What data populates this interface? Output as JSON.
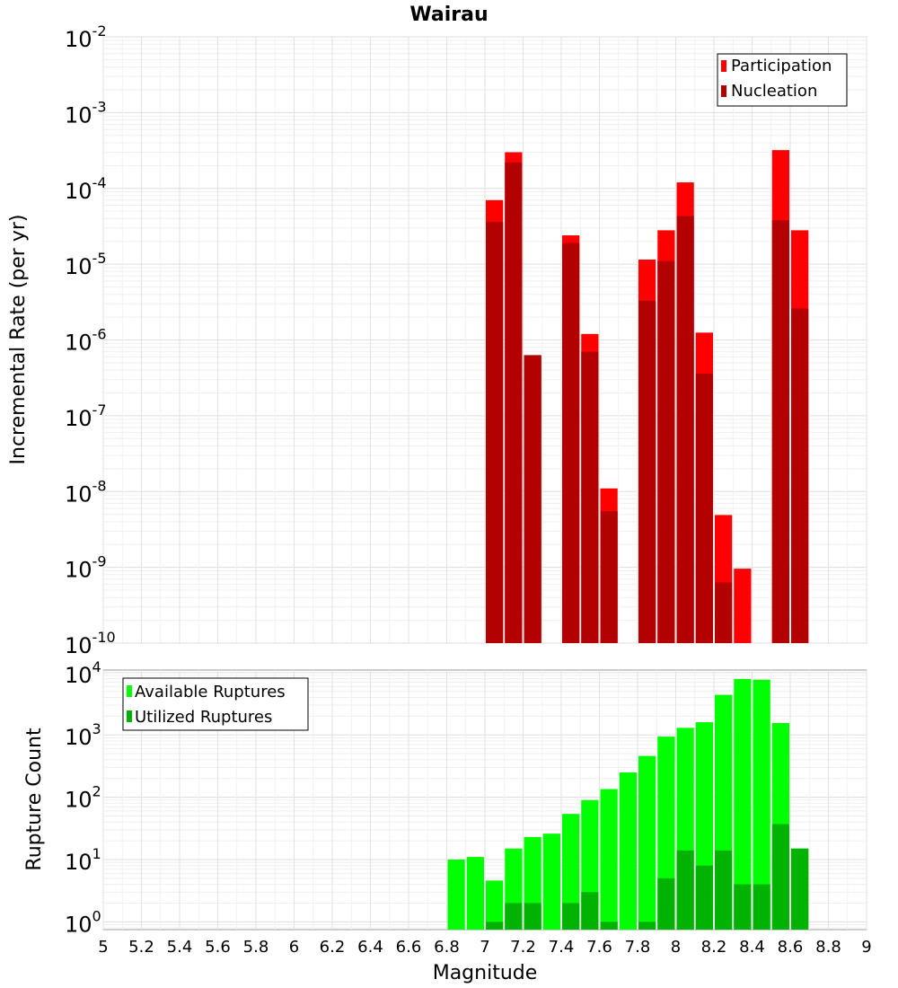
{
  "title": "Wairau",
  "chart_data": [
    {
      "type": "bar",
      "ylabel": "Incremental Rate (per yr)",
      "xlabel": "",
      "yscale": "log",
      "ylim": [
        1e-10,
        0.01
      ],
      "xlim": [
        5,
        9
      ],
      "grid": true,
      "legend_position": "top-right",
      "y_ticks": [
        {
          "base": "10",
          "exp": "-2",
          "value": 0.01
        },
        {
          "base": "10",
          "exp": "-3",
          "value": 0.001
        },
        {
          "base": "10",
          "exp": "-4",
          "value": 0.0001
        },
        {
          "base": "10",
          "exp": "-5",
          "value": 1e-05
        },
        {
          "base": "10",
          "exp": "-6",
          "value": 1e-06
        },
        {
          "base": "10",
          "exp": "-7",
          "value": 1e-07
        },
        {
          "base": "10",
          "exp": "-8",
          "value": 1e-08
        },
        {
          "base": "10",
          "exp": "-9",
          "value": 1e-09
        },
        {
          "base": "10",
          "exp": "-10",
          "value": 1e-10
        }
      ],
      "x": [
        7.05,
        7.15,
        7.25,
        7.45,
        7.55,
        7.65,
        7.85,
        7.95,
        8.05,
        8.15,
        8.25,
        8.35,
        8.55,
        8.65
      ],
      "series": [
        {
          "name": "Participation",
          "color": "#ff0000",
          "values": [
            7e-05,
            0.0003,
            6.3e-07,
            2.4e-05,
            1.2e-06,
            1.1e-08,
            1.15e-05,
            2.8e-05,
            0.00012,
            1.25e-06,
            4.9e-09,
            9.6e-10,
            0.00032,
            2.8e-05
          ]
        },
        {
          "name": "Nucleation",
          "color": "#b30000",
          "values": [
            3.6e-05,
            0.00022,
            6.3e-07,
            1.9e-05,
            7e-07,
            5.5e-09,
            3.3e-06,
            1.1e-05,
            4.3e-05,
            3.6e-07,
            6.3e-10,
            null,
            3.8e-05,
            2.6e-06
          ]
        }
      ]
    },
    {
      "type": "bar",
      "ylabel": "Rupture Count",
      "xlabel": "Magnitude",
      "yscale": "log",
      "ylim": [
        0.75,
        11000
      ],
      "xlim": [
        5,
        9
      ],
      "grid": true,
      "legend_position": "top-left",
      "y_ticks": [
        {
          "base": "10",
          "exp": "4",
          "value": 10000
        },
        {
          "base": "10",
          "exp": "3",
          "value": 1000
        },
        {
          "base": "10",
          "exp": "2",
          "value": 100
        },
        {
          "base": "10",
          "exp": "1",
          "value": 10
        },
        {
          "base": "10",
          "exp": "0",
          "value": 1
        }
      ],
      "x_ticks": [
        "5",
        "5.2",
        "5.4",
        "5.6",
        "5.8",
        "6",
        "6.2",
        "6.4",
        "6.6",
        "6.8",
        "7",
        "7.2",
        "7.4",
        "7.6",
        "7.8",
        "8",
        "8.2",
        "8.4",
        "8.6",
        "8.8",
        "9"
      ],
      "x": [
        6.85,
        6.95,
        7.05,
        7.15,
        7.25,
        7.35,
        7.45,
        7.55,
        7.65,
        7.75,
        7.85,
        7.95,
        8.05,
        8.15,
        8.25,
        8.35,
        8.45,
        8.55,
        8.65
      ],
      "series": [
        {
          "name": "Available Ruptures",
          "color": "#00ff00",
          "values": [
            10,
            11,
            4.6,
            15,
            23,
            26,
            54,
            90,
            135,
            250,
            460,
            940,
            1300,
            1600,
            4400,
            7900,
            7700,
            1550,
            15
          ]
        },
        {
          "name": "Utilized Ruptures",
          "color": "#00b300",
          "values": [
            null,
            null,
            1,
            2,
            2,
            null,
            2,
            3,
            1,
            null,
            1,
            5,
            14,
            8,
            14,
            4,
            4,
            37,
            15
          ]
        }
      ]
    }
  ]
}
